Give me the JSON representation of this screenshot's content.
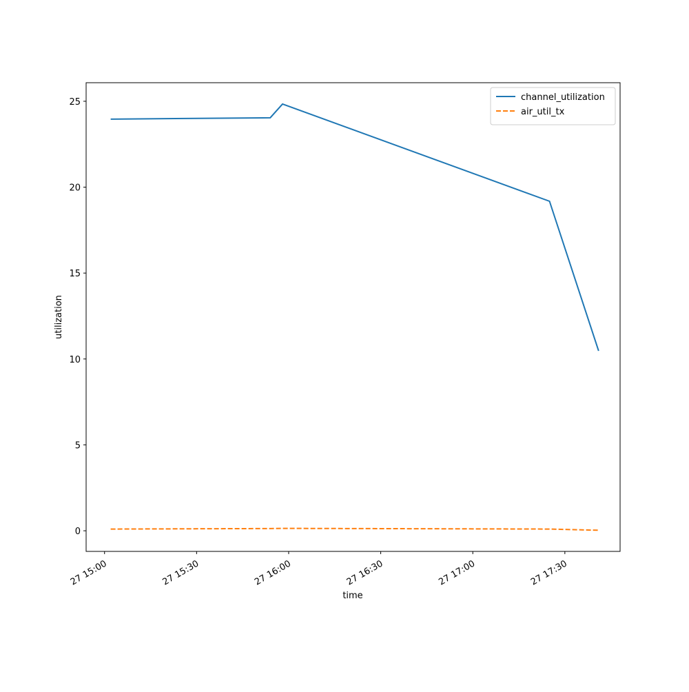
{
  "chart_data": {
    "type": "line",
    "x": [
      "27 15:02",
      "27 15:54",
      "27 15:58",
      "27 17:25",
      "27 17:41"
    ],
    "series": [
      {
        "name": "channel_utilization",
        "color": "#1f77b4",
        "dash": false,
        "values": [
          23.96,
          24.04,
          24.84,
          19.18,
          10.47
        ]
      },
      {
        "name": "air_util_tx",
        "color": "#ff7f0e",
        "dash": true,
        "values": [
          0.1,
          0.13,
          0.14,
          0.1,
          0.03
        ]
      }
    ],
    "xlabel": "time",
    "ylabel": "utilization",
    "xlim": [
      "27 14:54",
      "27 17:48"
    ],
    "xticks": [
      "27 15:00",
      "27 15:30",
      "27 16:00",
      "27 16:30",
      "27 17:00",
      "27 17:30"
    ],
    "ylim": [
      -1.2,
      26.08
    ],
    "yticks": [
      0,
      5,
      10,
      15,
      20,
      25
    ],
    "legend": "upper right",
    "grid": false
  }
}
